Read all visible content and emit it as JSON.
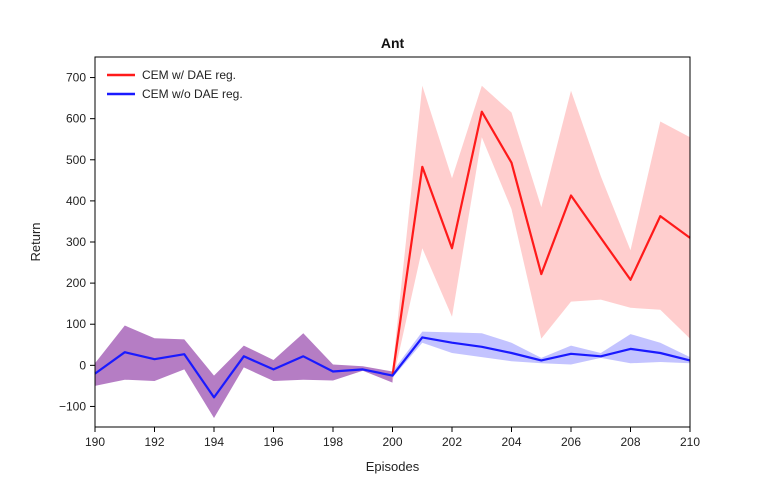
{
  "chart_data": {
    "type": "line",
    "title": "Ant",
    "xlabel": "Episodes",
    "ylabel": "Return",
    "xlim": [
      190,
      210
    ],
    "ylim": [
      -150,
      750
    ],
    "xticks": [
      190,
      192,
      194,
      196,
      198,
      200,
      202,
      204,
      206,
      208,
      210
    ],
    "yticks": [
      -100,
      0,
      100,
      200,
      300,
      400,
      500,
      600,
      700
    ],
    "ytick_labels": [
      "−100",
      "0",
      "100",
      "200",
      "300",
      "400",
      "500",
      "600",
      "700"
    ],
    "grid": false,
    "legend_position": "top-left",
    "x": [
      190,
      191,
      192,
      193,
      194,
      195,
      196,
      197,
      198,
      199,
      200,
      201,
      202,
      203,
      204,
      205,
      206,
      207,
      208,
      209,
      210
    ],
    "series": [
      {
        "name": "CEM w/ DAE reg.",
        "color": "#ff1a1a",
        "band_color": "#ffc6c6",
        "values": [
          null,
          null,
          null,
          null,
          null,
          null,
          null,
          null,
          null,
          null,
          -25,
          483,
          285,
          617,
          493,
          222,
          413,
          310,
          208,
          363,
          310
        ],
        "lower": [
          null,
          null,
          null,
          null,
          null,
          null,
          null,
          null,
          null,
          null,
          -40,
          285,
          118,
          555,
          380,
          65,
          155,
          160,
          140,
          135,
          65
        ],
        "upper": [
          null,
          null,
          null,
          null,
          null,
          null,
          null,
          null,
          null,
          null,
          -10,
          680,
          455,
          680,
          615,
          385,
          668,
          460,
          280,
          593,
          555
        ]
      },
      {
        "name": "CEM w/o DAE reg.",
        "color": "#1a1aff",
        "band_color": "#b9b9ff",
        "values": [
          -20,
          32,
          15,
          27,
          -78,
          22,
          -10,
          22,
          -15,
          -10,
          -25,
          68,
          55,
          45,
          30,
          12,
          28,
          22,
          40,
          30,
          12
        ],
        "lower": [
          null,
          null,
          null,
          null,
          null,
          null,
          null,
          null,
          null,
          null,
          -30,
          55,
          30,
          20,
          10,
          5,
          2,
          18,
          5,
          8,
          5
        ],
        "upper": [
          null,
          null,
          null,
          null,
          null,
          null,
          null,
          null,
          null,
          null,
          -15,
          82,
          80,
          78,
          55,
          18,
          48,
          30,
          76,
          55,
          20
        ]
      }
    ],
    "combined_band": {
      "color": "#b57dc4",
      "x": [
        190,
        191,
        192,
        193,
        194,
        195,
        196,
        197,
        198,
        199,
        200
      ],
      "lower": [
        -50,
        -35,
        -38,
        -10,
        -128,
        -5,
        -38,
        -35,
        -37,
        -13,
        -42
      ],
      "upper": [
        5,
        97,
        66,
        63,
        -25,
        48,
        13,
        78,
        2,
        -2,
        -15
      ]
    }
  }
}
